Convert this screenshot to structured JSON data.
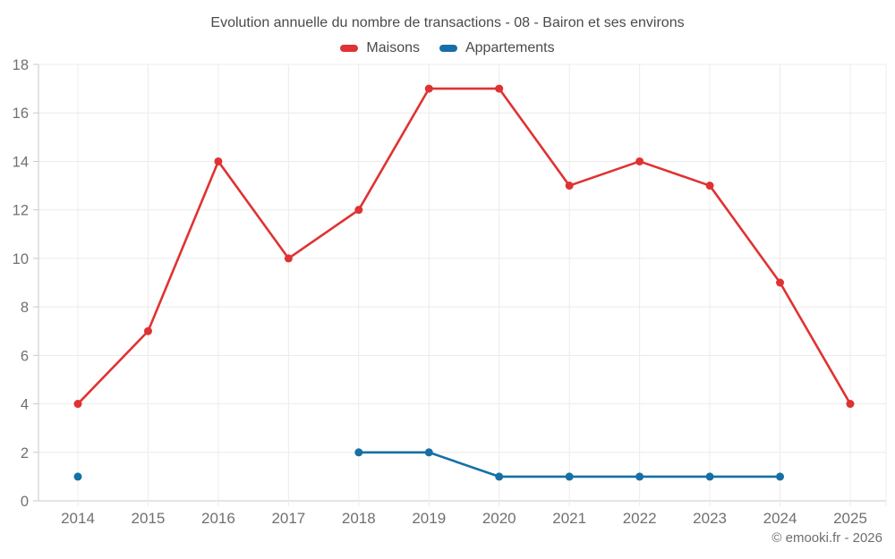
{
  "title": "Evolution annuelle du nombre de transactions - 08 - Bairon et ses environs",
  "footer": "© emooki.fr - 2026",
  "legend": [
    {
      "label": "Maisons",
      "color": "#e03232"
    },
    {
      "label": "Appartements",
      "color": "#1670a6"
    }
  ],
  "colors": {
    "maisons": "#e03232",
    "appartements": "#1670a6",
    "gridline": "#ececec",
    "axis_line": "#c9c9c9",
    "tick_label": "#707070",
    "title_text": "#4a4a4a",
    "footer_text": "#6e6e6e"
  },
  "chart_data": {
    "type": "line",
    "title": "Evolution annuelle du nombre de transactions - 08 - Bairon et ses environs",
    "xlabel": "",
    "ylabel": "",
    "x": [
      "2014",
      "2015",
      "2016",
      "2017",
      "2018",
      "2019",
      "2020",
      "2021",
      "2022",
      "2023",
      "2024",
      "2025"
    ],
    "series": [
      {
        "name": "Maisons",
        "color": "#e03232",
        "values": [
          4,
          7,
          14,
          10,
          12,
          17,
          17,
          13,
          14,
          13,
          9,
          4
        ]
      },
      {
        "name": "Appartements",
        "color": "#1670a6",
        "values": [
          1,
          null,
          null,
          null,
          2,
          2,
          1,
          1,
          1,
          1,
          1,
          null
        ]
      }
    ],
    "ylim": [
      0,
      18
    ],
    "ytick_step": 2,
    "grid": true,
    "legend_position": "top"
  }
}
